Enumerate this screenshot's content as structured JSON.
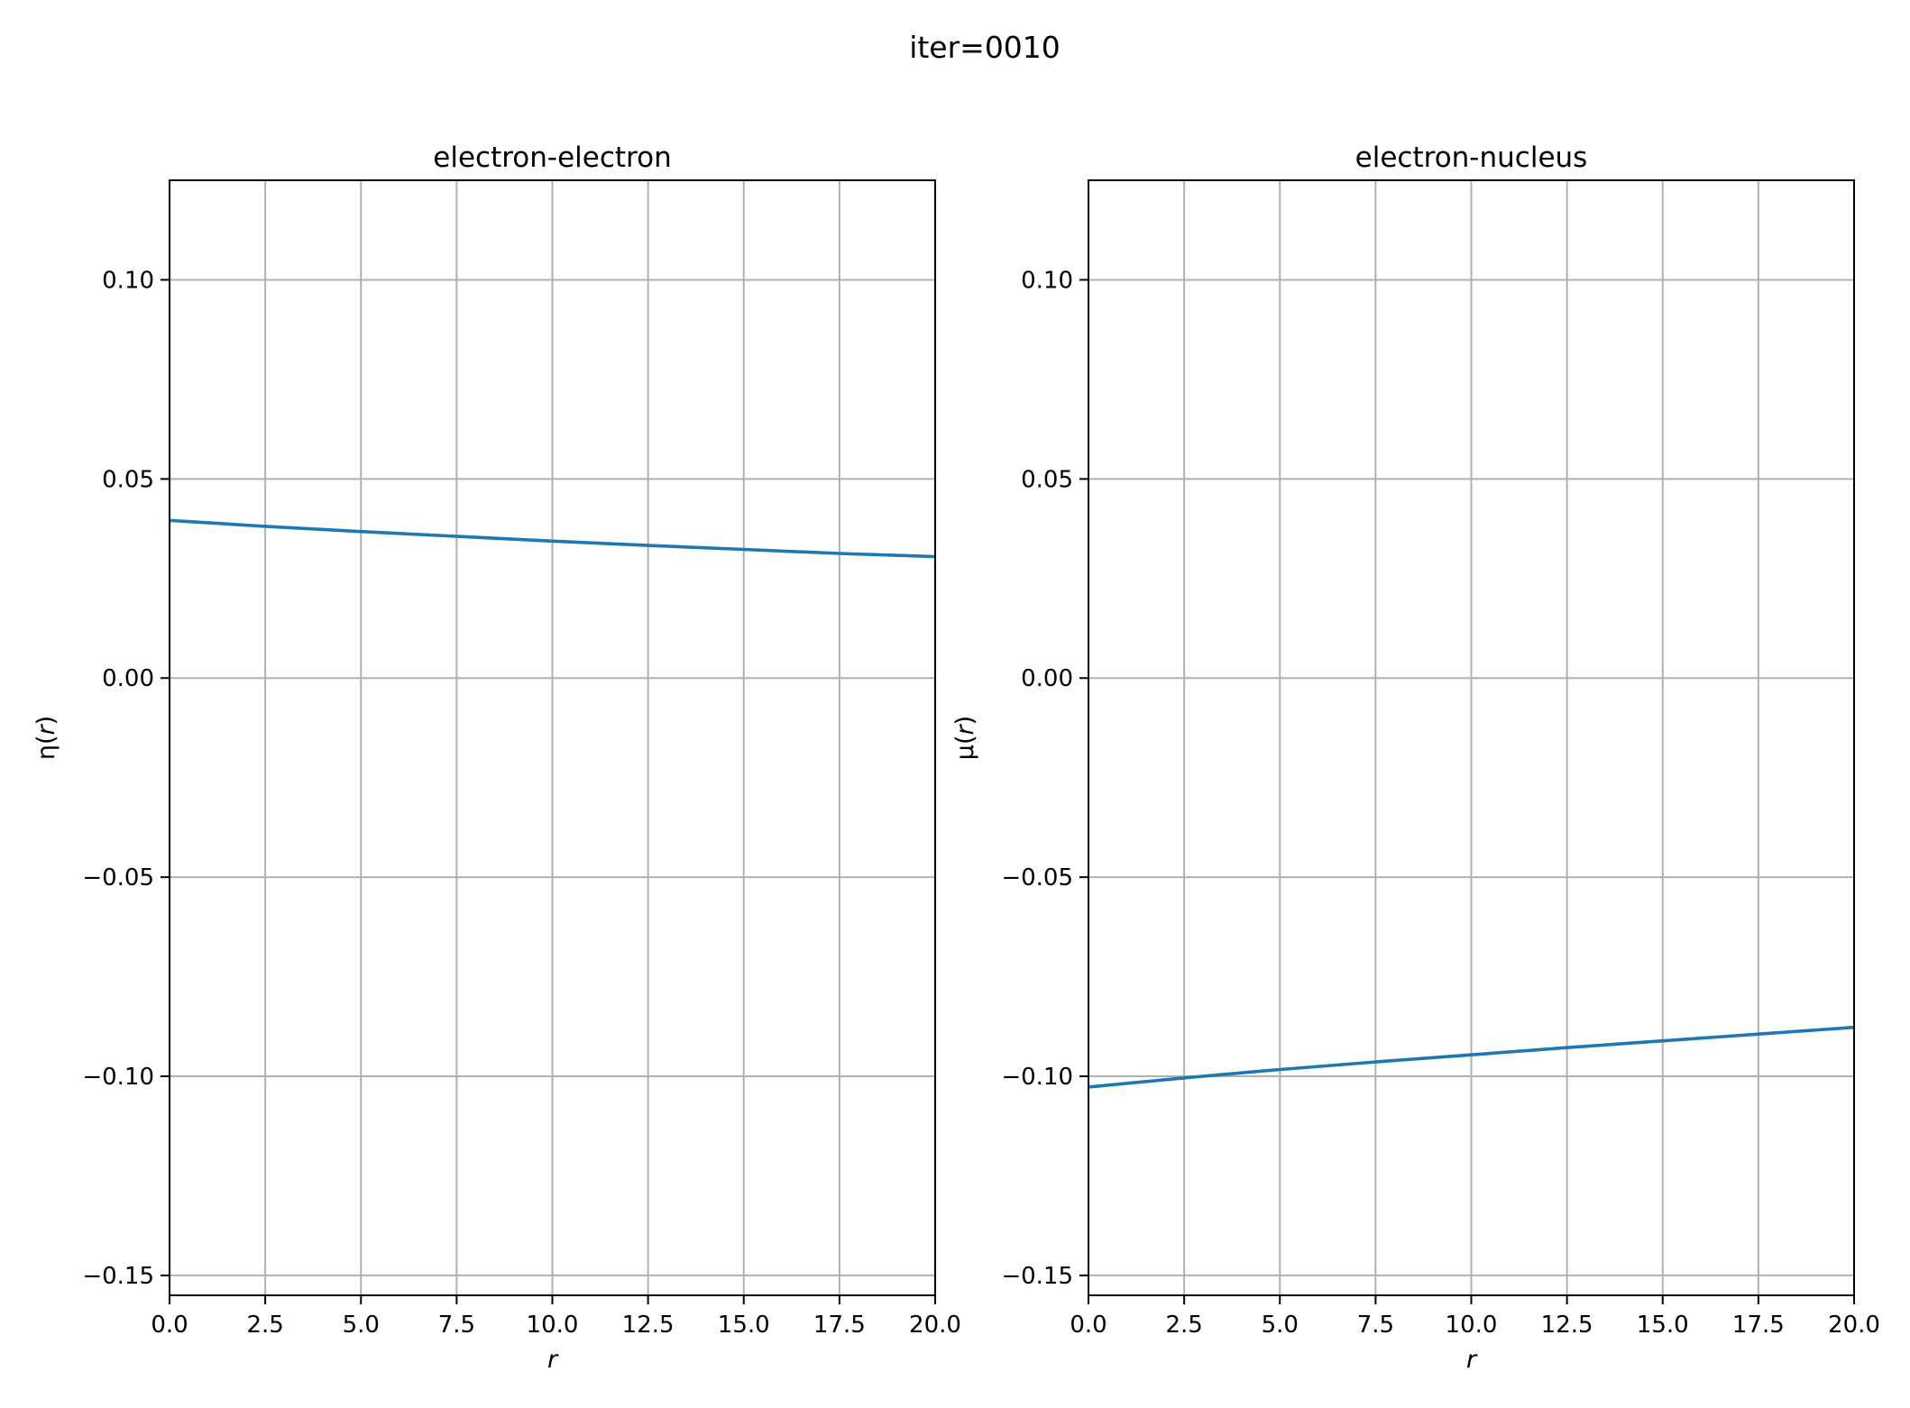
{
  "figure": {
    "suptitle": "iter=0010"
  },
  "style": {
    "line_color": "#1f77b4",
    "grid_color": "#b0b0b0",
    "axes_color": "#000000",
    "background": "#ffffff"
  },
  "chart_data": [
    {
      "type": "line",
      "title": "electron-electron",
      "xlabel": "r",
      "ylabel": {
        "prefix": "η(",
        "var": "r",
        "suffix": ")"
      },
      "xlim": [
        0,
        20
      ],
      "ylim": [
        -0.155,
        0.125
      ],
      "xticks": [
        0,
        2.5,
        5,
        7.5,
        10,
        12.5,
        15,
        17.5,
        20
      ],
      "xtick_labels": [
        "0.0",
        "2.5",
        "5.0",
        "7.5",
        "10.0",
        "12.5",
        "15.0",
        "17.5",
        "20.0"
      ],
      "yticks": [
        -0.15,
        -0.1,
        -0.05,
        0.0,
        0.05,
        0.1
      ],
      "ytick_labels": [
        "−0.15",
        "−0.10",
        "−0.05",
        "0.00",
        "0.05",
        "0.10"
      ],
      "grid": true,
      "series": [
        {
          "x": [
            0,
            2.5,
            5,
            7.5,
            10,
            12.5,
            15,
            17.5,
            20
          ],
          "y": [
            0.0396,
            0.0381,
            0.0368,
            0.0356,
            0.0344,
            0.0333,
            0.0323,
            0.0313,
            0.0305
          ]
        }
      ]
    },
    {
      "type": "line",
      "title": "electron-nucleus",
      "xlabel": "r",
      "ylabel": {
        "prefix": "μ(",
        "var": "r",
        "suffix": ")"
      },
      "xlim": [
        0,
        20
      ],
      "ylim": [
        -0.155,
        0.125
      ],
      "xticks": [
        0,
        2.5,
        5,
        7.5,
        10,
        12.5,
        15,
        17.5,
        20
      ],
      "xtick_labels": [
        "0.0",
        "2.5",
        "5.0",
        "7.5",
        "10.0",
        "12.5",
        "15.0",
        "17.5",
        "20.0"
      ],
      "yticks": [
        -0.15,
        -0.1,
        -0.05,
        0.0,
        0.05,
        0.1
      ],
      "ytick_labels": [
        "−0.15",
        "−0.10",
        "−0.05",
        "0.00",
        "0.05",
        "0.10"
      ],
      "grid": true,
      "series": [
        {
          "x": [
            0,
            2.5,
            5,
            7.5,
            10,
            12.5,
            15,
            17.5,
            20
          ],
          "y": [
            -0.1027,
            -0.1004,
            -0.0983,
            -0.0964,
            -0.0946,
            -0.0928,
            -0.0911,
            -0.0894,
            -0.0877
          ]
        }
      ]
    }
  ]
}
